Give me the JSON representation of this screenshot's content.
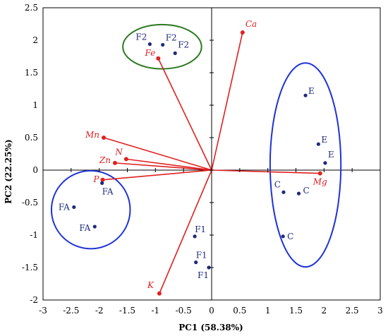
{
  "chart_data": {
    "type": "scatter",
    "title": "",
    "xlabel": "PC1 (58.38%)",
    "ylabel": "PC2 (22.25%)",
    "xlim": [
      -3,
      3
    ],
    "ylim": [
      -2,
      2.5
    ],
    "xticks": [
      -3,
      -2.5,
      -2,
      -1.5,
      -1,
      -0.5,
      0,
      0.5,
      1,
      1.5,
      2,
      2.5,
      3
    ],
    "xtick_labels": [
      "-3",
      "-2.5",
      "-2",
      "-1.5",
      "-1",
      "-0.5",
      "0",
      "0.5",
      "1",
      "1.5",
      "2",
      "2.5",
      "3"
    ],
    "yticks": [
      -2,
      -1.5,
      -1,
      -0.5,
      0,
      0.5,
      1,
      1.5,
      2,
      2.5
    ],
    "ytick_labels": [
      "-2",
      "-1.5",
      "-1",
      "-0.5",
      "0",
      "0.5",
      "1",
      "1.5",
      "2",
      "2.5"
    ],
    "grid": false,
    "scores": {
      "color": "#1f2a7a",
      "points": [
        {
          "label": "F2",
          "x": -1.1,
          "y": 1.94
        },
        {
          "label": "F2",
          "x": -0.87,
          "y": 1.93
        },
        {
          "label": "F2",
          "x": -0.65,
          "y": 1.8
        },
        {
          "label": "E",
          "x": 1.67,
          "y": 1.15
        },
        {
          "label": "E",
          "x": 1.9,
          "y": 0.4
        },
        {
          "label": "E",
          "x": 2.02,
          "y": 0.11
        },
        {
          "label": "C",
          "x": 1.28,
          "y": -0.34
        },
        {
          "label": "C",
          "x": 1.55,
          "y": -0.36
        },
        {
          "label": "C",
          "x": 1.27,
          "y": -1.02
        },
        {
          "label": "FA",
          "x": -1.95,
          "y": -0.2
        },
        {
          "label": "FA",
          "x": -2.45,
          "y": -0.57
        },
        {
          "label": "FA",
          "x": -2.08,
          "y": -0.87
        },
        {
          "label": "F1",
          "x": -0.3,
          "y": -1.02
        },
        {
          "label": "F1",
          "x": -0.28,
          "y": -1.42
        },
        {
          "label": "F1",
          "x": -0.05,
          "y": -1.5
        }
      ]
    },
    "loadings": {
      "color": "#e02020",
      "vectors": [
        {
          "label": "Ca",
          "x": 0.55,
          "y": 2.12
        },
        {
          "label": "Fe",
          "x": -0.95,
          "y": 1.72
        },
        {
          "label": "Mn",
          "x": -1.92,
          "y": 0.5
        },
        {
          "label": "N",
          "x": -1.52,
          "y": 0.17
        },
        {
          "label": "Zn",
          "x": -1.72,
          "y": 0.11
        },
        {
          "label": "P",
          "x": -1.94,
          "y": -0.15
        },
        {
          "label": "Mg",
          "x": 1.93,
          "y": -0.05
        },
        {
          "label": "K",
          "x": -0.93,
          "y": -1.9
        }
      ]
    },
    "groups": [
      {
        "members": "F2",
        "cx": -0.88,
        "cy": 1.9,
        "rx": 0.7,
        "ry": 0.34,
        "color": "#2a7a1f"
      },
      {
        "members": "E, C",
        "cx": 1.67,
        "cy": 0.08,
        "rx": 0.63,
        "ry": 1.57,
        "color": "#1f33d6"
      },
      {
        "members": "FA",
        "cx": -2.15,
        "cy": -0.61,
        "rx": 0.7,
        "ry": 0.6,
        "color": "#1f33d6"
      }
    ]
  }
}
